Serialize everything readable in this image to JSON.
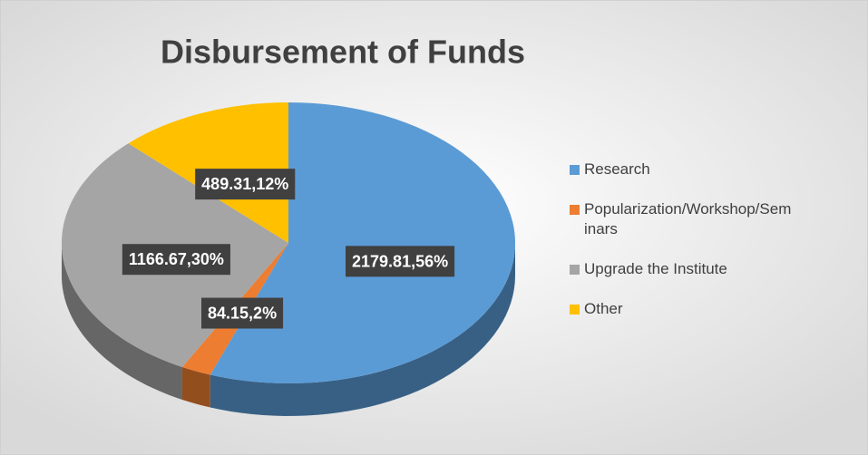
{
  "chart_data": {
    "type": "pie",
    "title": "Disbursement of Funds",
    "categories": [
      "Research",
      "Popularization/Workshop/Seminars",
      "Upgrade the Institute",
      "Other"
    ],
    "values": [
      2179.81,
      84.15,
      1166.67,
      489.31
    ],
    "value_labels": [
      "2179.81,56%",
      "84.15,2%",
      "1166.67,30%",
      "489.31,12%"
    ],
    "colors": [
      "#5b9bd5",
      "#ed7d31",
      "#a5a5a5",
      "#ffc000"
    ],
    "legend": "right"
  }
}
